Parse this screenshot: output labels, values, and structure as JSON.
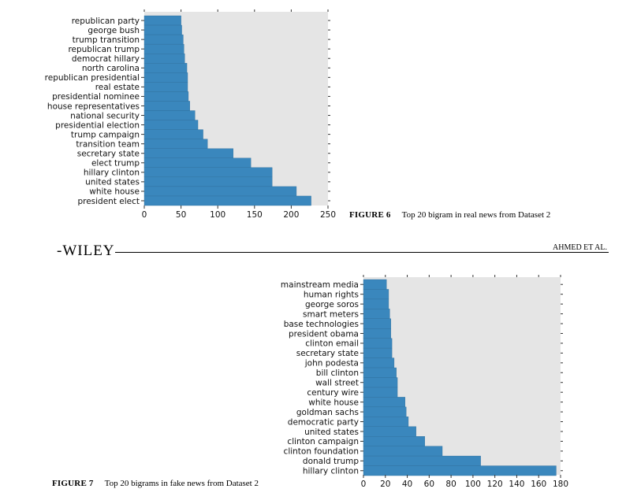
{
  "header": {
    "publisher": "-WILEY",
    "author": "AHMED ET AL."
  },
  "figure6": {
    "label": "FIGURE 6",
    "caption": "Top 20 bigram in real news from Dataset 2"
  },
  "figure7": {
    "label": "FIGURE 7",
    "caption": "Top 20 bigrams in fake news from Dataset 2"
  },
  "colors": {
    "bar": "#3a87bd",
    "plot_bg": "#e5e5e5",
    "tick": "#333333"
  },
  "chart_data": [
    {
      "type": "bar",
      "orientation": "horizontal",
      "categories": [
        "republican party",
        "george bush",
        "trump transition",
        "republican trump",
        "democrat hillary",
        "north carolina",
        "republican presidential",
        "real estate",
        "presidential nominee",
        "house representatives",
        "national security",
        "presidential election",
        "trump campaign",
        "transition team",
        "secretary state",
        "elect trump",
        "hillary clinton",
        "united states",
        "white house",
        "president elect"
      ],
      "values": [
        50,
        51,
        53,
        54,
        55,
        58,
        59,
        59,
        60,
        62,
        69,
        73,
        80,
        86,
        121,
        145,
        174,
        174,
        207,
        227
      ],
      "xlim": [
        0,
        250
      ],
      "xticks": [
        0,
        50,
        100,
        150,
        200,
        250
      ],
      "grid": false
    },
    {
      "type": "bar",
      "orientation": "horizontal",
      "categories": [
        "mainstream media",
        "human rights",
        "george soros",
        "smart meters",
        "base technologies",
        "president obama",
        "clinton email",
        "secretary state",
        "john podesta",
        "bill clinton",
        "wall street",
        "century wire",
        "white house",
        "goldman sachs",
        "democratic party",
        "united states",
        "clinton campaign",
        "clinton foundation",
        "donald trump",
        "hillary clinton"
      ],
      "values": [
        21,
        23,
        23,
        24,
        25,
        25,
        26,
        26,
        28,
        30,
        31,
        31,
        38,
        39,
        41,
        48,
        56,
        72,
        107,
        176
      ],
      "xlim": [
        0,
        180
      ],
      "xticks": [
        0,
        20,
        40,
        60,
        80,
        100,
        120,
        140,
        160,
        180
      ],
      "grid": false
    }
  ]
}
